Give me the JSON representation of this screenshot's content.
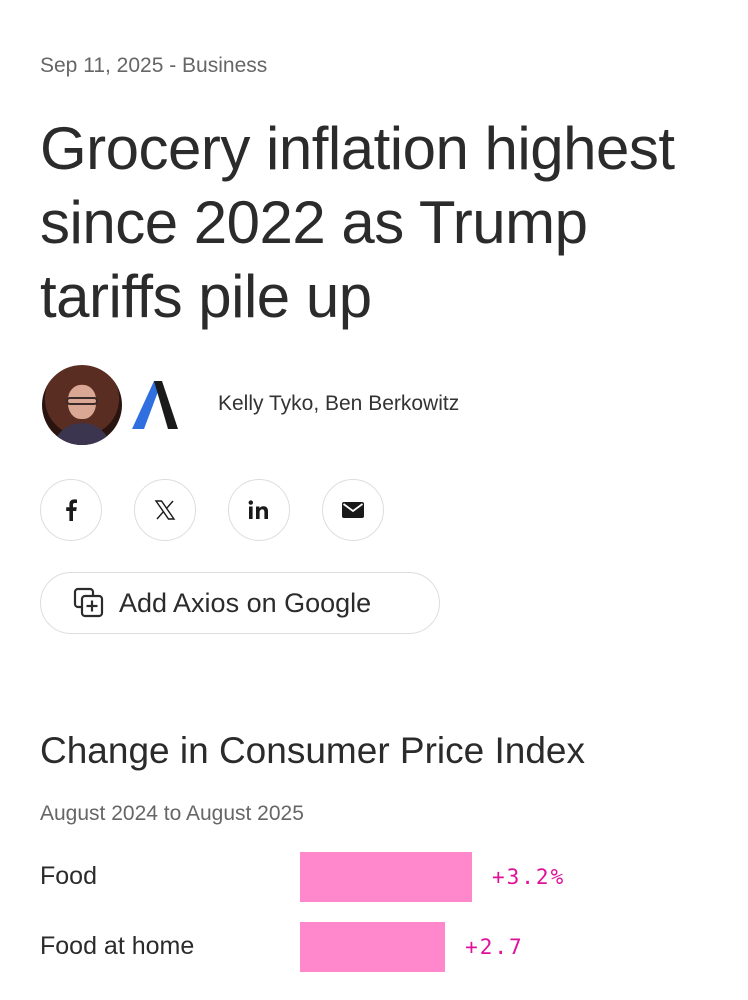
{
  "article": {
    "meta": "Sep 11, 2025 - Business",
    "headline": "Grocery inflation highest since 2022 as Trump tariffs pile up",
    "authors": "Kelly Tyko, Ben Berkowitz"
  },
  "share": {
    "icons": [
      "facebook-icon",
      "x-icon",
      "linkedin-icon",
      "mail-icon"
    ]
  },
  "google_button": {
    "label": "Add Axios on Google",
    "icon": "add-to-google-icon"
  },
  "colors": {
    "bar": "#ff88cc",
    "value_text": "#e0109a",
    "axios_blue": "#2f6fe0"
  },
  "chart_data": {
    "type": "bar",
    "title": "Change in Consumer Price Index",
    "subtitle": "August 2024 to August 2025",
    "categories": [
      "Food",
      "Food at home"
    ],
    "values": [
      3.2,
      2.7
    ],
    "value_labels": [
      "+3.2%",
      "+2.7"
    ],
    "unit": "%"
  }
}
